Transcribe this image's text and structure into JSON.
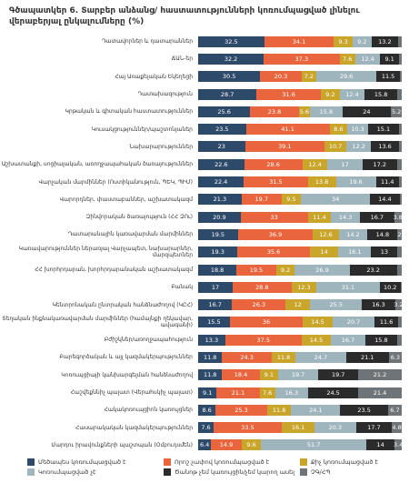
{
  "chart_data": {
    "type": "stacked-bar-horizontal",
    "title": "Գծապատկեր 6. Տարբեր անձանց/ հաստատությունների կոռումպացված լինելու վերաբերյալ ընկալումները (%)",
    "xlim": [
      0,
      100
    ],
    "categories": [
      "Դատավորներ և դատարաններ",
      "ՃԱՆ-եր",
      "Հայ Առաքելական Եկեղեցի",
      "Դատախազություն",
      "Կրթական և գիտական հաստատություններ",
      "Կուսակցություններ/պաշտոնյաներ",
      "Նախարարություններ",
      "Աշխատանքի, սոցիալական, առողջապահական ծառայություններ",
      "Վարչական մարմիններ (Ոստիկանություն, ՊԵԿ, ՊԻՄ)",
      "Վարորդներ, փաստաբաններ, աշխատակազմ",
      "Զինվորական ծառայություն (ՀՀ ԶՈւ)",
      "Դատարանային կառավարման մարմիններ",
      "Կառավարություններ ներառյալ Վարչապետ, նախարարներ, մարզպետներ",
      "ՀՀ խորհրդարան, խորհրդարանական աշխատակազմ",
      "Բանակ",
      "Կենտրոնական ընտրական հանձնաժողով (ԿԸՀ)",
      "Տեղական ինքնակառավարման մարմիններ (համայնքի ղեկավար, ավագանի)",
      "Բժիշկներ/առողջապահություն",
      "Բարեգործական և այլ կազմակերպություններ",
      "Կոռուպցիայի կանխարգելման հանձնաժողով",
      "Հաշվեքննիչ պալատ (Վերահսկիչ պալատ)",
      "Հակակոռուպցիոն կառույցներ",
      "Հասարակական կազմակերպություններ",
      "Մարդու իրավունքների պաշտպան (Օմբուդսմեն)"
    ],
    "series": [
      {
        "name": "Մեծապես կոռումպացված է",
        "color": "#2e4a6b",
        "values": [
          32.5,
          32.2,
          30.5,
          28.7,
          25.6,
          23.5,
          23,
          22.6,
          22.4,
          21.3,
          20.9,
          19.5,
          19.3,
          18.8,
          17,
          16.7,
          15.5,
          13.3,
          11.8,
          11.8,
          9.1,
          8.6,
          7.6,
          6.4
        ]
      },
      {
        "name": "Որոշ չափով կոռումպացված է",
        "color": "#e8653d",
        "values": [
          34.1,
          37.3,
          20.3,
          31.6,
          23.8,
          41.1,
          39.1,
          28.6,
          31.5,
          19.7,
          33,
          36.9,
          35.6,
          19.5,
          28.8,
          26.3,
          36,
          37.5,
          24.3,
          18.4,
          21.1,
          25.3,
          33.5,
          14.9
        ]
      },
      {
        "name": "Քիչ կոռումպացված է",
        "color": "#c9a52a",
        "values": [
          9.3,
          7.6,
          7.2,
          9.2,
          5.6,
          8.6,
          10.7,
          12.4,
          13.8,
          9.5,
          11.4,
          12.6,
          14,
          9.2,
          12.3,
          12,
          14.5,
          14.5,
          11.8,
          9.1,
          7.6,
          11.8,
          16.1,
          9.6
        ]
      },
      {
        "name": "Կոռումպացված չէ",
        "color": "#9fb5bd",
        "values": [
          9.2,
          12.4,
          29.6,
          12.4,
          15.8,
          10.3,
          12.2,
          17,
          19.6,
          34,
          14.3,
          14.2,
          16.1,
          26.9,
          31.1,
          25.5,
          20.7,
          16.7,
          24.7,
          19.7,
          16.3,
          24.1,
          20.3,
          51.7
        ]
      },
      {
        "name": "Ծանոթ չեմ կառույցին/չեմ կարող ասել",
        "color": "#2b2b2b",
        "values": [
          13.2,
          9.1,
          11.5,
          15.8,
          24,
          15.1,
          13.6,
          17.2,
          11.4,
          14.4,
          16.7,
          14.8,
          13,
          23.2,
          10.2,
          16.3,
          11.6,
          15.8,
          21.1,
          19.7,
          24.5,
          23.5,
          17.7,
          14
        ]
      },
      {
        "name": "ՉԳ/ՀՊ",
        "color": "#6f7478",
        "values": [
          1.7,
          1.4,
          0.9,
          2.3,
          5.2,
          1.4,
          1.4,
          2.2,
          1.3,
          1.1,
          3.8,
          2,
          2,
          2.4,
          0.6,
          3.2,
          1.7,
          2.2,
          6.3,
          21.2,
          21.4,
          6.7,
          4.8,
          3.4
        ],
        "value_labels": [
          null,
          null,
          null,
          null,
          "5.2",
          null,
          null,
          null,
          null,
          null,
          "3.8",
          "2",
          null,
          null,
          null,
          "3.2",
          null,
          null,
          "6.3",
          "21.2",
          "21.4",
          "6.7",
          "4.8",
          "3.4"
        ]
      }
    ]
  }
}
